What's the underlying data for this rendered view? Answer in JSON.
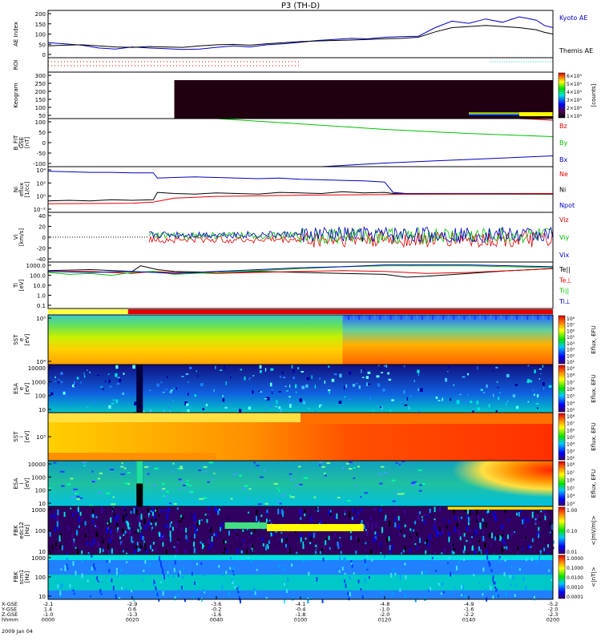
{
  "title": "P3 (TH-D)",
  "date_label": "2009 Jan 04",
  "colors": {
    "red": "#e00000",
    "green": "#00c000",
    "blue": "#0000c0",
    "black": "#000000",
    "cyan": "#00c8c8"
  },
  "time_axis": {
    "row_labels": [
      "X-GSE",
      "Y-GSE",
      "Z-GSE",
      "hhmm"
    ],
    "ticks": [
      {
        "t": 0,
        "x": "-2.1",
        "y": "1.4",
        "z": "-1.0",
        "hhmm": "0000"
      },
      {
        "t": 20,
        "x": "-2.9",
        "y": "0.6",
        "z": "-1.3",
        "hhmm": "0020"
      },
      {
        "t": 40,
        "x": "-3.6",
        "y": "-0.2",
        "z": "-1.6",
        "hhmm": "0040"
      },
      {
        "t": 60,
        "x": "-4.1",
        "y": "-0.4",
        "z": "-1.8",
        "hhmm": "0100"
      },
      {
        "t": 80,
        "x": "-4.8",
        "y": "-1.0",
        "z": "-2.0",
        "hhmm": "0120"
      },
      {
        "t": 100,
        "x": "-4.9",
        "y": "-1.6",
        "z": "-2.2",
        "hhmm": "0140"
      },
      {
        "t": 120,
        "x": "-5.2",
        "y": "-2.0",
        "z": "-2.3",
        "hhmm": "0200"
      }
    ]
  },
  "panels": [
    {
      "id": "ae",
      "ylabel": [
        "AE Index"
      ],
      "yticks": [
        "200",
        "150",
        "100",
        "50",
        "0"
      ],
      "legend": [
        {
          "text": "Kyoto AE",
          "color": "#0000c0"
        },
        {
          "text": "Themis AE",
          "color": "#000000"
        }
      ]
    },
    {
      "id": "roi",
      "ylabel": [
        "ROI"
      ],
      "yticks": [],
      "legend": []
    },
    {
      "id": "keogram",
      "ylabel": [
        "Keogram"
      ],
      "yticks": [
        "300",
        "250",
        "200",
        "150",
        "100",
        "50"
      ],
      "cbar": {
        "ticks": [
          "6×10⁴",
          "5×10⁴",
          "4×10⁴",
          "3×10⁴",
          "2×10⁴",
          "1×10⁴"
        ],
        "label": "[counts]"
      }
    },
    {
      "id": "bfit",
      "ylabel": [
        "B_FIT",
        "GSE",
        "[nT]"
      ],
      "yticks": [
        "100",
        "50",
        "0",
        "-50",
        "-100"
      ],
      "legend": [
        {
          "text": "Bz",
          "color": "#e00000"
        },
        {
          "text": "By",
          "color": "#00c000"
        },
        {
          "text": "Bx",
          "color": "#0000c0"
        }
      ]
    },
    {
      "id": "ni",
      "ylabel": [
        "Ni",
        "eflux",
        "[1/cc]"
      ],
      "yticks": [
        "10⁴",
        "10²",
        "10⁰",
        "10⁻²"
      ],
      "legend": [
        {
          "text": "Ne",
          "color": "#e00000"
        },
        {
          "text": "Ni",
          "color": "#000000"
        },
        {
          "text": "Npot",
          "color": "#0000c0"
        }
      ]
    },
    {
      "id": "vi",
      "ylabel": [
        "Vi",
        "[km/s]"
      ],
      "yticks": [
        "40",
        "20",
        "0",
        "-20",
        "-40"
      ],
      "legend": [
        {
          "text": "Viz",
          "color": "#e00000"
        },
        {
          "text": "Viy",
          "color": "#00c000"
        },
        {
          "text": "Vix",
          "color": "#0000c0"
        }
      ]
    },
    {
      "id": "ti",
      "ylabel": [
        "Ti",
        "[eV]"
      ],
      "yticks": [
        "1000.0",
        "100.0",
        "10.0",
        "1.0",
        "0.1"
      ],
      "legend": [
        {
          "text": "Te||",
          "color": "#000000"
        },
        {
          "text": "Te⊥",
          "color": "#e00000"
        },
        {
          "text": "Ti||",
          "color": "#00c000"
        },
        {
          "text": "Ti⊥",
          "color": "#0000c0"
        }
      ]
    },
    {
      "id": "sst_e",
      "ylabel": [
        "SST",
        "e",
        "[eV]"
      ],
      "yticks": [
        "10⁵",
        "10⁴"
      ],
      "cbar": {
        "ticks": [
          "10⁸",
          "10⁷",
          "10⁶",
          "10⁵",
          "10⁴",
          "10³",
          "10²",
          "10¹"
        ],
        "label": "Eflux, EFU"
      }
    },
    {
      "id": "esa_e",
      "ylabel": [
        "ESA",
        "e",
        "[eV]"
      ],
      "yticks": [
        "10000",
        "1000",
        "100",
        "10"
      ],
      "cbar": {
        "ticks": [
          "10⁹",
          "10⁸",
          "10⁷",
          "10⁶",
          "10⁵",
          "10⁴",
          "10³"
        ],
        "label": "Eflux, EFU"
      }
    },
    {
      "id": "sst_i",
      "ylabel": [
        "SST",
        "i",
        "[eV]"
      ],
      "yticks": [
        "10⁵"
      ],
      "cbar": {
        "ticks": [
          "10⁸",
          "10⁷",
          "10⁶",
          "10⁵",
          "10⁴",
          "10³",
          "10²"
        ],
        "label": "Eflux, EFU"
      }
    },
    {
      "id": "esa_i",
      "ylabel": [
        "ESA",
        "i",
        "[eV]"
      ],
      "yticks": [
        "10000",
        "1000",
        "100",
        "10"
      ],
      "cbar": {
        "ticks": [
          "10⁸",
          "10⁷",
          "10⁶",
          "10⁵",
          "10⁴",
          "10³"
        ],
        "label": "Eflux, EFU"
      }
    },
    {
      "id": "fbk_e",
      "ylabel": [
        "FBK",
        "edc12",
        "[Hz]"
      ],
      "yticks": [
        "1000",
        "100",
        "10"
      ],
      "cbar": {
        "ticks": [
          "1.00",
          "0.10",
          "0.01"
        ],
        "label": "<|mV/m|>"
      }
    },
    {
      "id": "fbk_b",
      "ylabel": [
        "FBK",
        "scm1",
        "[Hz]"
      ],
      "yticks": [
        "1000",
        "100",
        "10"
      ],
      "cbar": {
        "ticks": [
          "1.0000",
          "0.1000",
          "0.0100",
          "0.0010",
          "0.0001"
        ],
        "label": "<|nT|>"
      }
    }
  ],
  "chart_data": {
    "type": "line",
    "title": "P3 (TH-D)",
    "time_unit": "minutes after 0000 UT",
    "x_range": [
      0,
      120
    ],
    "ae": {
      "ylim": [
        0,
        220
      ],
      "series": [
        {
          "name": "Kyoto AE",
          "color": "#0000c0",
          "x": [
            0,
            4,
            8,
            12,
            16,
            20,
            24,
            28,
            32,
            36,
            40,
            44,
            48,
            52,
            56,
            60,
            64,
            68,
            72,
            76,
            80,
            84,
            88,
            92,
            96,
            100,
            104,
            108,
            112,
            116,
            118,
            120
          ],
          "y": [
            70,
            64,
            58,
            45,
            40,
            50,
            45,
            42,
            38,
            40,
            48,
            55,
            50,
            60,
            65,
            72,
            80,
            85,
            90,
            88,
            95,
            98,
            100,
            140,
            170,
            160,
            180,
            165,
            190,
            175,
            150,
            140
          ]
        },
        {
          "name": "Themis AE",
          "color": "#000000",
          "x": [
            0,
            4,
            8,
            12,
            16,
            20,
            24,
            28,
            32,
            36,
            40,
            44,
            48,
            52,
            56,
            60,
            64,
            68,
            72,
            76,
            80,
            84,
            88,
            92,
            96,
            100,
            104,
            108,
            112,
            116,
            118,
            120
          ],
          "y": [
            55,
            58,
            60,
            55,
            50,
            48,
            52,
            50,
            48,
            55,
            60,
            62,
            58,
            65,
            70,
            75,
            78,
            80,
            82,
            85,
            88,
            90,
            95,
            120,
            140,
            145,
            150,
            145,
            140,
            130,
            118,
            110
          ]
        }
      ]
    },
    "bfit": {
      "ylim": [
        -100,
        100
      ],
      "series": [
        {
          "name": "Bz",
          "color": "#e00000",
          "x": [
            112,
            116,
            120
          ],
          "y": [
            100,
            97,
            93
          ]
        },
        {
          "name": "By",
          "color": "#00c000",
          "x": [
            40,
            60,
            80,
            100,
            120
          ],
          "y": [
            100,
            78,
            55,
            38,
            25
          ]
        },
        {
          "name": "Bx",
          "color": "#0000c0",
          "x": [
            65,
            80,
            100,
            120
          ],
          "y": [
            -100,
            -85,
            -70,
            -55
          ]
        }
      ]
    },
    "ni": {
      "ylim_log": [
        -3,
        5
      ],
      "series": [
        {
          "name": "Npot",
          "color": "#0000c0",
          "x": [
            0,
            5,
            10,
            15,
            20,
            25,
            26,
            30,
            35,
            40,
            45,
            50,
            55,
            60,
            65,
            70,
            75,
            80,
            82,
            85,
            120
          ],
          "y": [
            4.2,
            4.1,
            4.0,
            4.0,
            3.9,
            3.9,
            3.0,
            3.1,
            3.2,
            3.1,
            3.0,
            2.9,
            3.0,
            2.8,
            2.7,
            2.6,
            2.5,
            2.3,
            0.5,
            0.3,
            0.3
          ]
        },
        {
          "name": "Ni",
          "color": "#000000",
          "x": [
            0,
            5,
            10,
            15,
            20,
            25,
            26,
            30,
            35,
            40,
            45,
            50,
            55,
            60,
            65,
            70,
            75,
            80,
            82,
            85,
            120
          ],
          "y": [
            -1.0,
            -0.9,
            -1.0,
            -0.8,
            -0.9,
            -0.8,
            0.5,
            0.3,
            0.2,
            0.4,
            0.3,
            0.2,
            0.5,
            0.4,
            0.3,
            0.6,
            0.4,
            0.5,
            0.3,
            0.2,
            0.2
          ]
        },
        {
          "name": "Ne",
          "color": "#e00000",
          "x": [
            0,
            20,
            25,
            30,
            40,
            60,
            80,
            85,
            120
          ],
          "y": [
            -1.5,
            -1.4,
            -1.2,
            -0.5,
            -0.2,
            0.0,
            0.1,
            0.2,
            0.3
          ]
        }
      ]
    },
    "vi": {
      "ylim": [
        -50,
        50
      ],
      "start_t": 24,
      "series": [
        {
          "name": "Viz",
          "color": "#e00000",
          "mean": -5
        },
        {
          "name": "Viy",
          "color": "#00c000",
          "mean": 3
        },
        {
          "name": "Vix",
          "color": "#0000c0",
          "mean": 5
        }
      ]
    },
    "ti": {
      "ylim_log": [
        -1.3,
        3.6
      ],
      "series": [
        {
          "name": "Te||",
          "color": "#000000",
          "x": [
            0,
            10,
            20,
            22,
            26,
            30,
            40,
            50,
            60,
            70,
            80,
            85,
            90,
            100,
            110,
            120
          ],
          "y": [
            2.7,
            2.8,
            2.6,
            3.2,
            2.8,
            2.6,
            2.5,
            2.6,
            2.5,
            2.4,
            2.3,
            2.0,
            2.1,
            2.4,
            2.7,
            2.9
          ]
        },
        {
          "name": "Te⊥",
          "color": "#e00000",
          "x": [
            0,
            10,
            20,
            25,
            30,
            40,
            50,
            60,
            70,
            80,
            90,
            100,
            110,
            120
          ],
          "y": [
            2.6,
            2.6,
            2.4,
            2.6,
            2.5,
            2.4,
            2.5,
            2.6,
            2.7,
            2.6,
            2.4,
            2.5,
            2.7,
            2.9
          ]
        },
        {
          "name": "Ti||",
          "color": "#00c000",
          "x": [
            0,
            5,
            10,
            15,
            20,
            25,
            30,
            40,
            50,
            60,
            70,
            80,
            90,
            100,
            110,
            120
          ],
          "y": [
            2.5,
            2.3,
            2.4,
            2.2,
            2.5,
            2.6,
            2.3,
            2.5,
            2.7,
            2.9,
            3.1,
            3.2,
            3.2,
            3.2,
            3.1,
            3.0
          ]
        },
        {
          "name": "Ti⊥",
          "color": "#0000c0",
          "x": [
            0,
            10,
            20,
            30,
            40,
            50,
            60,
            70,
            80,
            90,
            100,
            110,
            120
          ],
          "y": [
            2.6,
            2.5,
            2.6,
            2.4,
            2.6,
            2.8,
            3.0,
            3.1,
            3.3,
            3.3,
            3.3,
            3.2,
            3.1
          ]
        }
      ]
    }
  }
}
